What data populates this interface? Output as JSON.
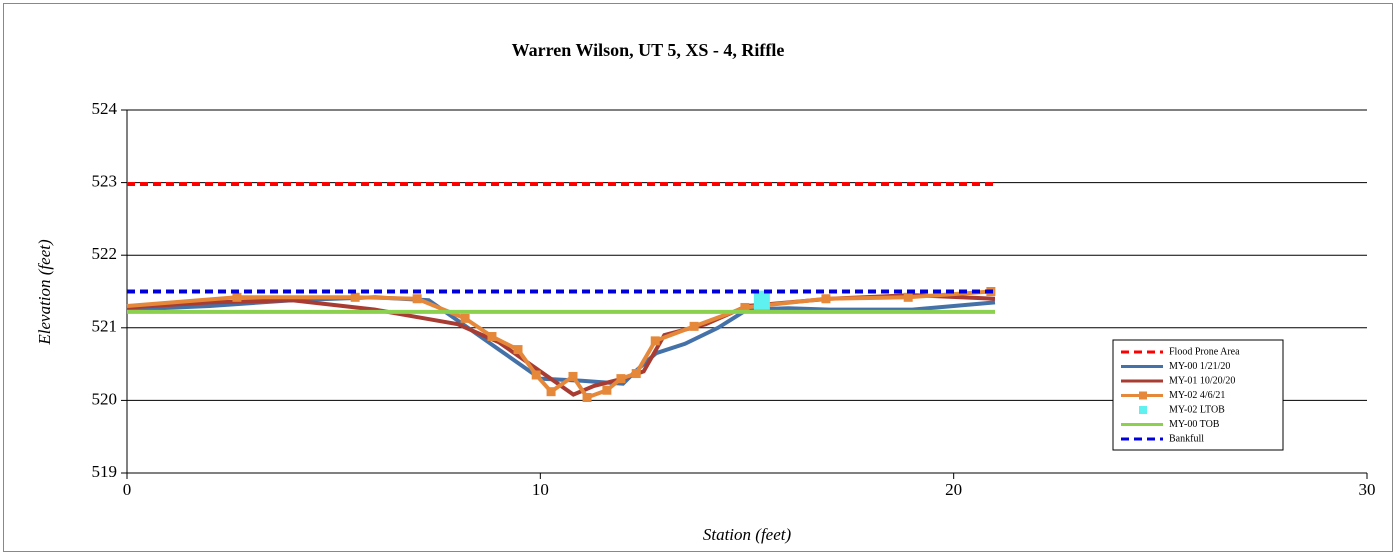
{
  "chart_data": {
    "type": "line",
    "title": "Warren Wilson, UT 5, XS - 4, Riffle",
    "x_label": "Station (feet)",
    "y_label": "Elevation (feet)",
    "xlim": [
      0,
      30
    ],
    "xticks": [
      0,
      10,
      20,
      30
    ],
    "ylim": [
      519,
      524
    ],
    "yticks": [
      519,
      520,
      521,
      522,
      523,
      524
    ],
    "grid": true,
    "legend": "right",
    "series": [
      {
        "name": "Flood Prone Area",
        "color": "#ff0000",
        "style": "dashed",
        "x": [
          0,
          21
        ],
        "values": [
          522.98,
          522.98
        ]
      },
      {
        "name": "MY-00 1/21/20",
        "color": "#4472a8",
        "style": "solid",
        "x": [
          0,
          2,
          4,
          6,
          7.3,
          8,
          9,
          10,
          11,
          12,
          12.3,
          12.8,
          13.5,
          14.3,
          15,
          16,
          17,
          18,
          19,
          20,
          21
        ],
        "values": [
          521.25,
          521.3,
          521.38,
          521.42,
          521.38,
          521.1,
          520.7,
          520.3,
          520.27,
          520.23,
          520.4,
          520.65,
          520.78,
          521.0,
          521.25,
          521.27,
          521.25,
          521.25,
          521.25,
          521.3,
          521.35
        ]
      },
      {
        "name": "MY-01 10/20/20",
        "color": "#a83c32",
        "style": "solid",
        "x": [
          0,
          2,
          4,
          6,
          7,
          8,
          9,
          10,
          10.8,
          11.3,
          12,
          12.5,
          13,
          14,
          15,
          17,
          19,
          21
        ],
        "values": [
          521.28,
          521.35,
          521.38,
          521.25,
          521.15,
          521.05,
          520.8,
          520.4,
          520.08,
          520.2,
          520.3,
          520.4,
          520.9,
          521.05,
          521.3,
          521.4,
          521.45,
          521.4
        ]
      },
      {
        "name": "MY-02 4/6/21",
        "color": "#e5883a",
        "style": "solid",
        "marker": "square",
        "x": [
          0,
          2.66,
          5.52,
          7.02,
          8.18,
          8.83,
          9.46,
          9.9,
          10.26,
          10.79,
          11.13,
          11.61,
          11.95,
          12.32,
          12.78,
          13.72,
          14.95,
          16.91,
          18.9,
          20.9
        ],
        "values": [
          521.3,
          521.42,
          521.42,
          521.4,
          521.13,
          520.88,
          520.7,
          520.35,
          520.12,
          520.33,
          520.04,
          520.14,
          520.3,
          520.37,
          520.82,
          521.02,
          521.28,
          521.4,
          521.42,
          521.5
        ]
      },
      {
        "name": "MY-02 LTOB",
        "color": "#5ff0f0",
        "style": "none",
        "marker": "bigsquare",
        "x": [
          15.36
        ],
        "values": [
          521.38
        ]
      },
      {
        "name": "MY-00 TOB",
        "color": "#8cd050",
        "style": "solid",
        "x": [
          0,
          21
        ],
        "values": [
          521.22,
          521.22
        ]
      },
      {
        "name": "Bankfull",
        "color": "#0000dd",
        "style": "dashed",
        "x": [
          0,
          21
        ],
        "values": [
          521.5,
          521.5
        ]
      }
    ]
  }
}
